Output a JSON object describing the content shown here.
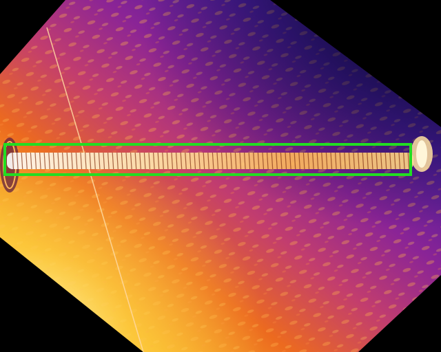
{
  "image": {
    "kind": "thermal-infrared-photo",
    "palette": "inferno",
    "subject": "insulator-string",
    "rotation": "diagonal-crop-on-black"
  },
  "detection": {
    "box_color": "#22dd22",
    "label": ""
  },
  "colors": {
    "background": "#000000",
    "hot": "#fff2b0",
    "warm": "#f07020",
    "mid": "#b02c8c",
    "cool": "#2a1a82"
  }
}
